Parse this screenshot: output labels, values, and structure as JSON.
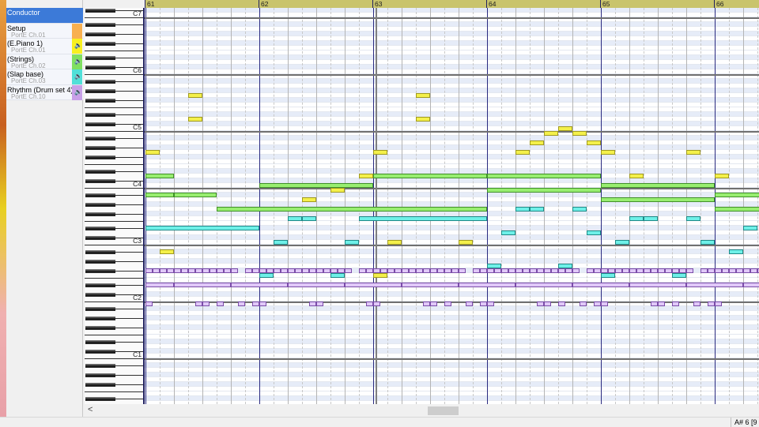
{
  "tracks": [
    {
      "name": "Conductor",
      "port": "",
      "color": "#3c7ad8",
      "speaker": false
    },
    {
      "name": "Setup",
      "port": "PortE  Ch.01",
      "color": "#f8b050",
      "speaker": false
    },
    {
      "name": "(E.Piano 1)",
      "port": "PortE  Ch.01",
      "color": "#f8f020",
      "speaker": true
    },
    {
      "name": "(Strings)",
      "port": "PortE  Ch.02",
      "color": "#80e060",
      "speaker": true
    },
    {
      "name": "(Slap base)",
      "port": "PortE  Ch.03",
      "color": "#50e0d8",
      "speaker": true
    },
    {
      "name": "Rhythm (Drum set 4)",
      "port": "PortE  Ch.10",
      "color": "#c8a0e8",
      "speaker": true
    }
  ],
  "ruler": {
    "measures": [
      "61",
      "62",
      "63",
      "64",
      "65",
      "66"
    ]
  },
  "keyboard": {
    "labels": [
      "C7",
      "C6",
      "C5",
      "C4",
      "C3",
      "C2",
      "C1"
    ]
  },
  "note_colors": {
    "epiano": {
      "fill": "#f4f04a",
      "border": "#a09a20"
    },
    "strings": {
      "fill": "#98ee70",
      "border": "#40902a"
    },
    "bass": {
      "fill": "#6ef0e8",
      "border": "#208a88"
    },
    "drums": {
      "fill": "#e0c8f8",
      "border": "#7a4ca8"
    }
  },
  "notes": {
    "epiano": [
      [
        0,
        0.5,
        67
      ],
      [
        0.5,
        0.5,
        46
      ],
      [
        1.5,
        0.5,
        79
      ],
      [
        1.5,
        0.5,
        74
      ],
      [
        5.5,
        0.5,
        57
      ],
      [
        6.5,
        0.5,
        59
      ],
      [
        7.5,
        0.5,
        62
      ],
      [
        8,
        0.5,
        67
      ],
      [
        8,
        0.5,
        41
      ],
      [
        8.5,
        0.5,
        48
      ],
      [
        9.5,
        0.5,
        79
      ],
      [
        9.5,
        0.5,
        74
      ],
      [
        11,
        0.5,
        48
      ],
      [
        13,
        0.5,
        67
      ],
      [
        13.5,
        0.5,
        69
      ],
      [
        14,
        0.5,
        71
      ],
      [
        14.5,
        0.5,
        72
      ],
      [
        15,
        0.5,
        71
      ],
      [
        15.5,
        0.5,
        69
      ],
      [
        16,
        0.5,
        67
      ],
      [
        17,
        0.5,
        62
      ],
      [
        19,
        0.5,
        67
      ],
      [
        20,
        0.5,
        62
      ]
    ],
    "strings": [
      [
        0,
        1,
        62
      ],
      [
        0,
        1,
        58
      ],
      [
        1,
        1.5,
        58
      ],
      [
        2.5,
        9.5,
        55
      ],
      [
        4,
        4,
        60
      ],
      [
        8,
        4,
        62
      ],
      [
        12,
        4,
        62
      ],
      [
        12,
        4,
        59
      ],
      [
        16,
        4,
        60
      ],
      [
        16,
        4,
        57
      ],
      [
        20,
        2,
        58
      ],
      [
        20,
        2,
        55
      ]
    ],
    "bass": [
      [
        0,
        4,
        51
      ],
      [
        4,
        0.5,
        41
      ],
      [
        4.5,
        0.5,
        48
      ],
      [
        5,
        0.5,
        53
      ],
      [
        5.5,
        0.5,
        53
      ],
      [
        6.5,
        0.5,
        41
      ],
      [
        7,
        0.5,
        48
      ],
      [
        7.5,
        4.5,
        53
      ],
      [
        12,
        0.5,
        43
      ],
      [
        12.5,
        0.5,
        50
      ],
      [
        13,
        0.5,
        55
      ],
      [
        13.5,
        0.5,
        55
      ],
      [
        14.5,
        0.5,
        43
      ],
      [
        15,
        0.5,
        55
      ],
      [
        15.5,
        0.5,
        50
      ],
      [
        16,
        0.5,
        41
      ],
      [
        16.5,
        0.5,
        48
      ],
      [
        17,
        0.5,
        53
      ],
      [
        17.5,
        0.5,
        53
      ],
      [
        18.5,
        0.5,
        41
      ],
      [
        19,
        0.5,
        53
      ],
      [
        19.5,
        0.5,
        48
      ],
      [
        20.5,
        0.5,
        46
      ],
      [
        21,
        0.5,
        51
      ]
    ],
    "drums": [
      {
        "pitch": 42,
        "len": 0.25,
        "starts": [
          0,
          0.25,
          0.5,
          0.75,
          1,
          1.25,
          1.5,
          1.75,
          2,
          2.25,
          2.5,
          2.75,
          3,
          3.5,
          3.75,
          4,
          4.25,
          4.5,
          4.75,
          5,
          5.25,
          5.5,
          5.75,
          6,
          6.25,
          6.5,
          6.75,
          7,
          7.5,
          7.75,
          8,
          8.25,
          8.5,
          8.75,
          9,
          9.25,
          9.5,
          9.75,
          10,
          10.25,
          10.5,
          10.75,
          11,
          11.5,
          11.75,
          12,
          12.25,
          12.5,
          12.75,
          13,
          13.25,
          13.5,
          13.75,
          14,
          14.25,
          14.5,
          14.75,
          15,
          15.5,
          15.75,
          16,
          16.25,
          16.5,
          16.75,
          17,
          17.25,
          17.5,
          17.75,
          18,
          18.25,
          18.5,
          18.75,
          19,
          19.5,
          19.75,
          20,
          20.25,
          20.5,
          20.75,
          21,
          21.25,
          21.5
        ]
      },
      {
        "pitch": 39,
        "len": 2,
        "starts": [
          1,
          3,
          5,
          7,
          9,
          11,
          13,
          15,
          17,
          19,
          21
        ]
      },
      {
        "pitch": 39,
        "len": 1,
        "starts": [
          0
        ]
      },
      {
        "pitch": 35,
        "len": 0.25,
        "starts": [
          0,
          1.75,
          2,
          2.5,
          3.25,
          3.75,
          4,
          5.75,
          6,
          7.75,
          8,
          9.75,
          10,
          10.5,
          11.25,
          11.75,
          12,
          13.75,
          14,
          14.5,
          15.25,
          15.75,
          16,
          17.75,
          18,
          18.5,
          19.25,
          19.75,
          20,
          21.75
        ]
      }
    ]
  },
  "scrollbar": {
    "left_arrow": "<"
  },
  "status": {
    "text": "A# 6 [9"
  }
}
